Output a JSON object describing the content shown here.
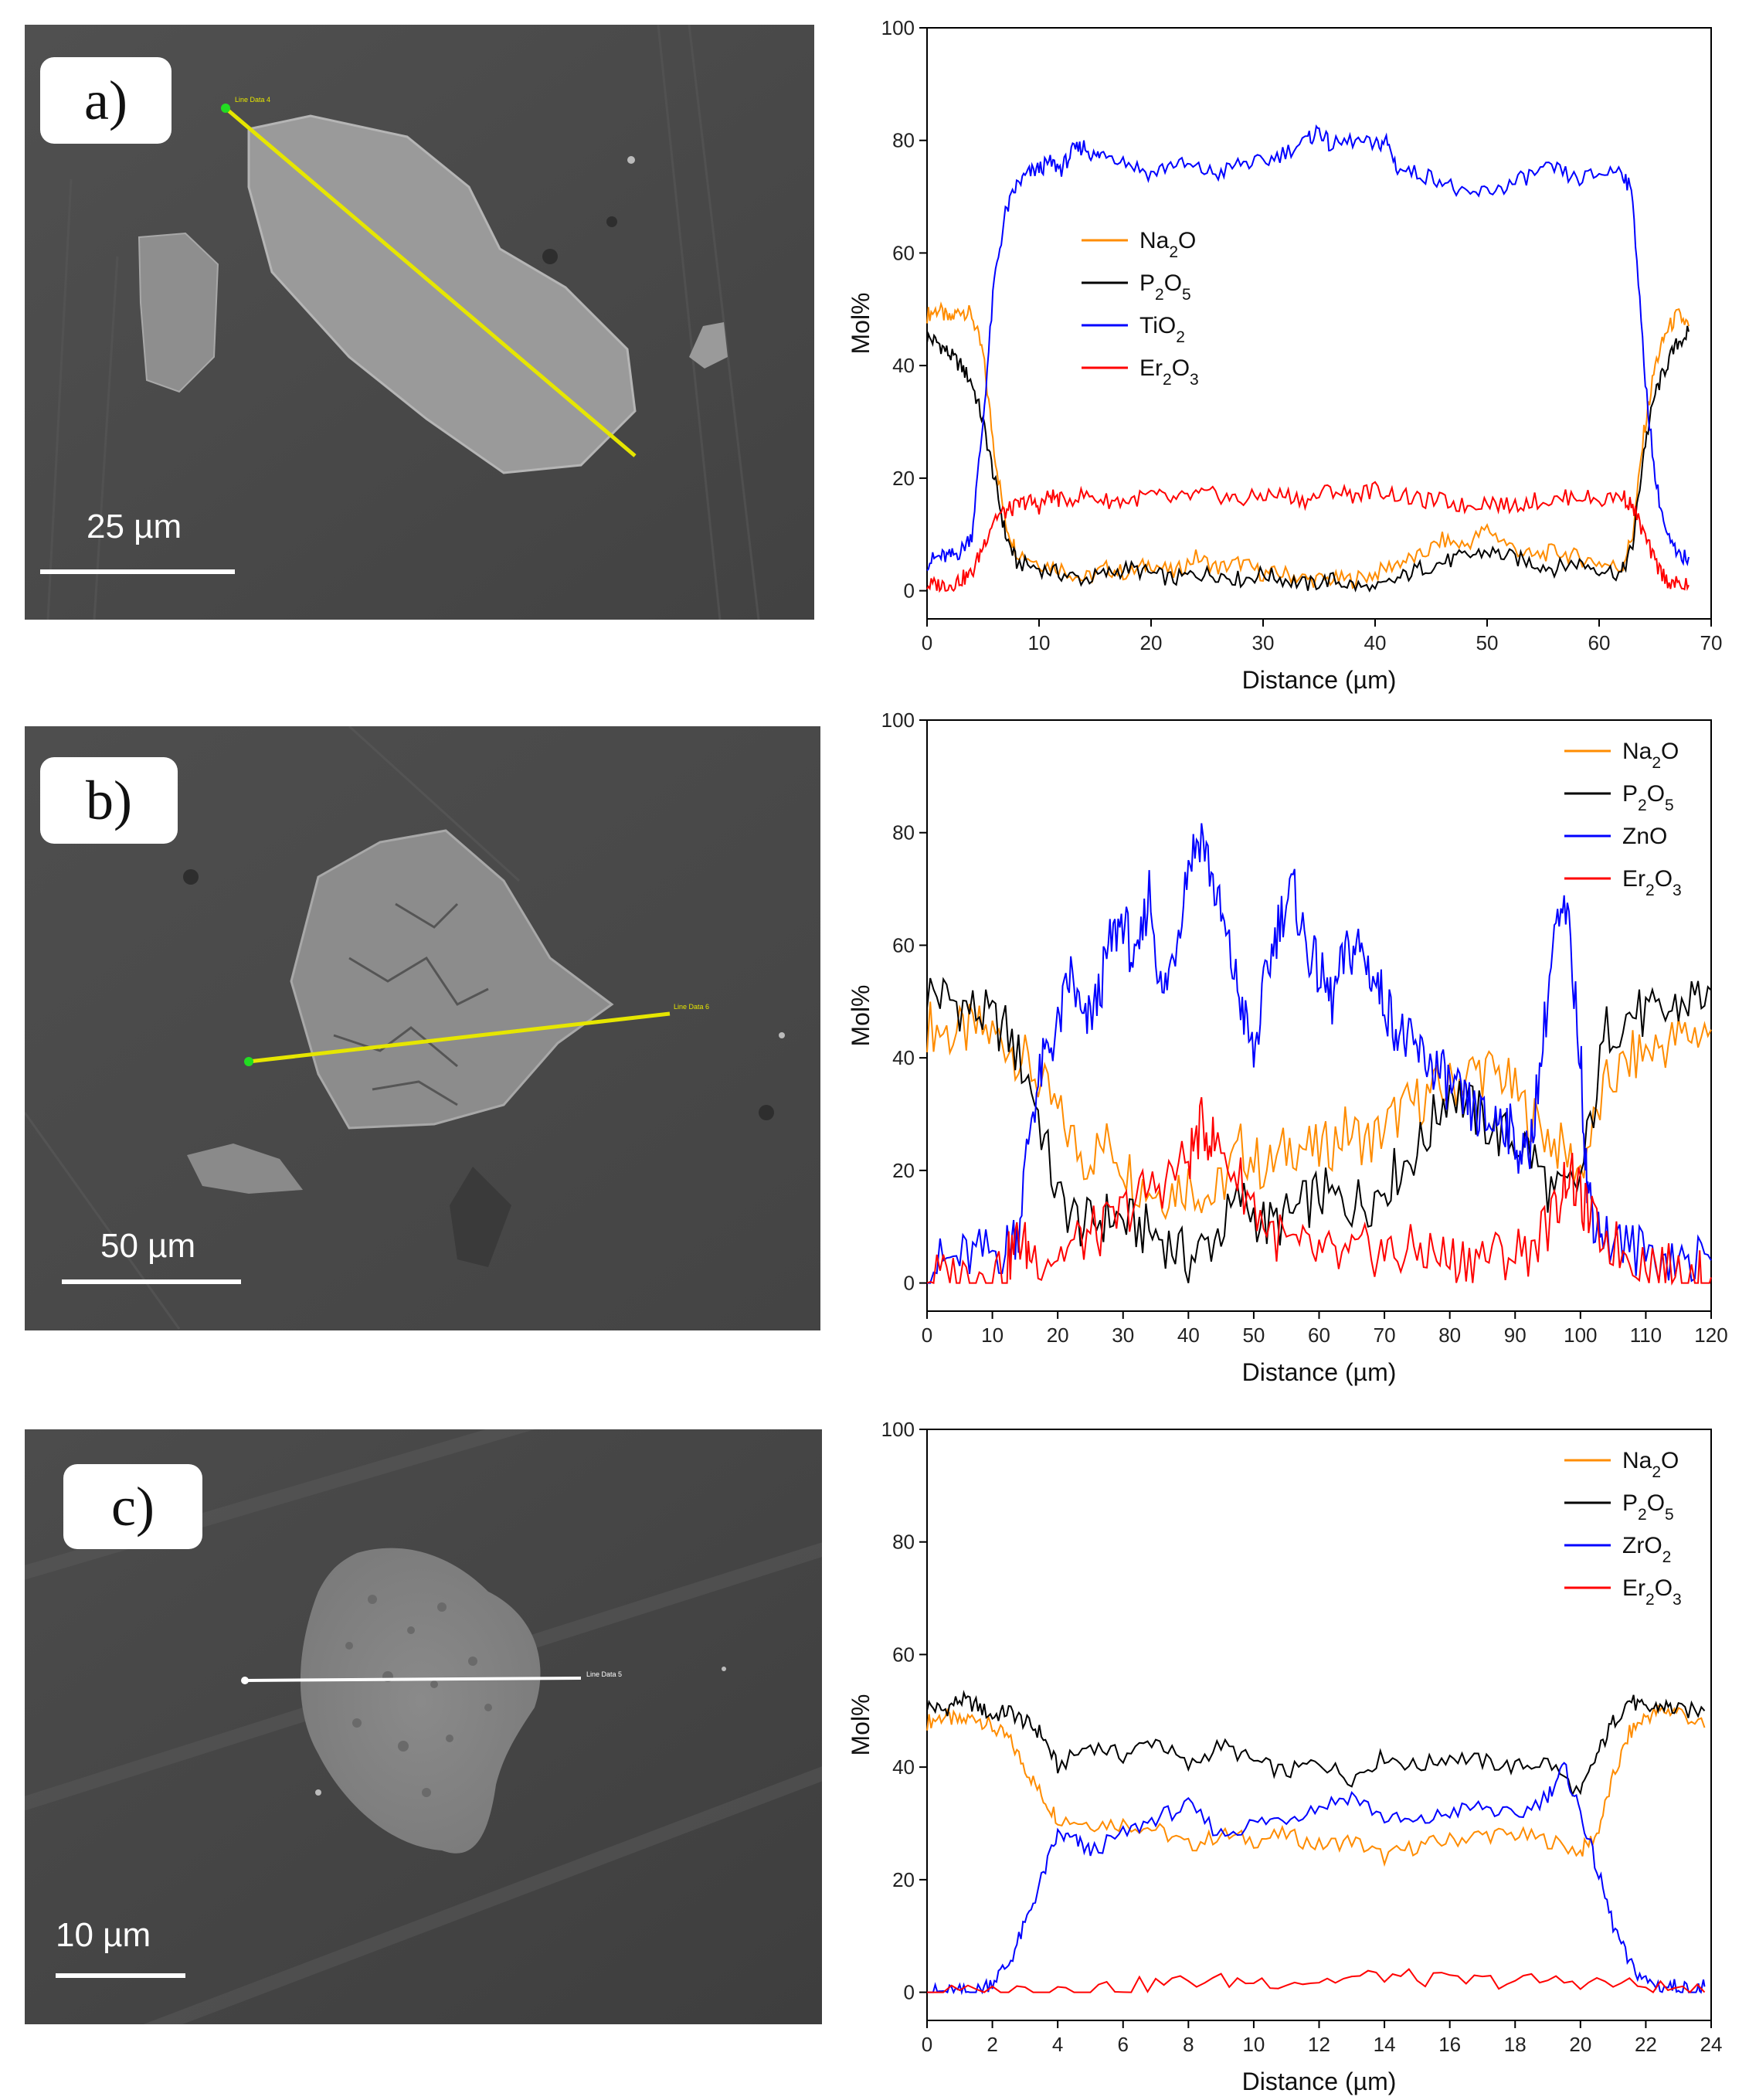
{
  "panels": [
    {
      "label": "a)",
      "scale_text": "25 µm",
      "line_tag": "Line Data 4",
      "line_color": "#e6e600",
      "chart_data": {
        "type": "line",
        "title": "",
        "xlabel": "Distance (µm)",
        "ylabel": "Mol%",
        "xlim": [
          0,
          70
        ],
        "ylim": [
          -5,
          100
        ],
        "xticks": [
          0,
          10,
          20,
          30,
          40,
          50,
          60,
          70
        ],
        "yticks": [
          0,
          20,
          40,
          60,
          80,
          100
        ],
        "legend_position": "center-left",
        "series": [
          {
            "name": "Na2O",
            "color": "#ff8c00",
            "x": [
              0,
              1,
              2,
              3,
              4,
              5,
              6,
              7,
              8,
              10,
              12,
              14,
              16,
              18,
              20,
              22,
              24,
              26,
              28,
              30,
              32,
              34,
              36,
              38,
              40,
              42,
              44,
              46,
              48,
              50,
              52,
              54,
              56,
              58,
              60,
              62,
              63,
              64,
              65,
              66,
              67,
              68
            ],
            "y": [
              49,
              50,
              48,
              50,
              49,
              42,
              25,
              12,
              7,
              5,
              4,
              2,
              4,
              3,
              5,
              3,
              6,
              4,
              5,
              3,
              3,
              2,
              2,
              2,
              3,
              5,
              6,
              9,
              8,
              11,
              8,
              6,
              7,
              6,
              5,
              4,
              10,
              28,
              40,
              46,
              49,
              47
            ]
          },
          {
            "name": "P2O5",
            "color": "#000000",
            "x": [
              0,
              1,
              2,
              3,
              4,
              5,
              6,
              7,
              8,
              10,
              12,
              14,
              16,
              18,
              20,
              22,
              24,
              26,
              28,
              30,
              32,
              34,
              36,
              38,
              40,
              42,
              44,
              46,
              48,
              50,
              52,
              54,
              56,
              58,
              60,
              62,
              63,
              64,
              65,
              66,
              67,
              68
            ],
            "y": [
              45,
              44,
              42,
              40,
              37,
              30,
              20,
              10,
              5,
              4,
              3,
              2,
              3,
              4,
              3,
              2,
              3,
              3,
              2,
              3,
              2,
              1,
              2,
              1,
              0,
              2,
              4,
              5,
              6,
              7,
              6,
              5,
              4,
              5,
              4,
              3,
              8,
              25,
              35,
              40,
              44,
              46
            ]
          },
          {
            "name": "TiO2",
            "color": "#0000ff",
            "x": [
              0,
              1,
              2,
              3,
              4,
              5,
              6,
              7,
              8,
              9,
              10,
              11,
              12,
              13,
              14,
              15,
              16,
              18,
              20,
              22,
              24,
              26,
              28,
              30,
              32,
              34,
              35,
              36,
              38,
              40,
              41,
              42,
              44,
              46,
              48,
              50,
              52,
              54,
              56,
              58,
              60,
              62,
              63,
              64,
              65,
              66,
              67,
              68
            ],
            "y": [
              5,
              6,
              6,
              7,
              10,
              30,
              55,
              67,
              72,
              74,
              75,
              76,
              75,
              78,
              79,
              77,
              78,
              76,
              74,
              76,
              75,
              74,
              76,
              76,
              78,
              80,
              82,
              79,
              80,
              79,
              80,
              75,
              74,
              73,
              70,
              71,
              72,
              74,
              75,
              73,
              74,
              75,
              70,
              40,
              20,
              10,
              6,
              6
            ]
          },
          {
            "name": "Er2O3",
            "color": "#ff0000",
            "x": [
              0,
              1,
              2,
              3,
              4,
              5,
              6,
              7,
              8,
              9,
              10,
              11,
              12,
              14,
              16,
              18,
              20,
              22,
              24,
              26,
              28,
              30,
              32,
              34,
              36,
              38,
              40,
              42,
              44,
              46,
              48,
              50,
              52,
              54,
              56,
              58,
              60,
              62,
              63,
              64,
              65,
              66,
              67,
              68
            ],
            "y": [
              1,
              1,
              1,
              2,
              3,
              8,
              13,
              14,
              15,
              16,
              15,
              17,
              16,
              17,
              16,
              16,
              17,
              16,
              17,
              17,
              16,
              17,
              17,
              16,
              18,
              17,
              18,
              17,
              16,
              16,
              15,
              16,
              15,
              16,
              16,
              17,
              16,
              17,
              15,
              10,
              5,
              2,
              1,
              1
            ]
          }
        ]
      }
    },
    {
      "label": "b)",
      "scale_text": "50 µm",
      "line_tag": "Line Data 6",
      "line_color": "#e6e600",
      "chart_data": {
        "type": "line",
        "title": "",
        "xlabel": "Distance (µm)",
        "ylabel": "Mol%",
        "xlim": [
          0,
          120
        ],
        "ylim": [
          -5,
          100
        ],
        "xticks": [
          0,
          10,
          20,
          30,
          40,
          50,
          60,
          70,
          80,
          90,
          100,
          110,
          120
        ],
        "yticks": [
          0,
          20,
          40,
          60,
          80,
          100
        ],
        "legend_position": "top-right",
        "series": [
          {
            "name": "Na2O",
            "color": "#ff8c00",
            "x": [
              0,
              4,
              8,
              12,
              16,
              20,
              24,
              28,
              32,
              36,
              40,
              44,
              48,
              52,
              56,
              60,
              64,
              68,
              72,
              76,
              80,
              84,
              88,
              92,
              96,
              100,
              104,
              108,
              112,
              116,
              120
            ],
            "y": [
              46,
              44,
              45,
              43,
              38,
              30,
              22,
              25,
              18,
              16,
              18,
              15,
              24,
              20,
              25,
              23,
              27,
              25,
              30,
              33,
              35,
              38,
              37,
              30,
              25,
              20,
              35,
              40,
              42,
              44,
              45
            ]
          },
          {
            "name": "P2O5",
            "color": "#000000",
            "x": [
              0,
              4,
              8,
              12,
              16,
              20,
              24,
              28,
              32,
              36,
              40,
              44,
              48,
              52,
              56,
              60,
              64,
              68,
              72,
              76,
              80,
              84,
              88,
              92,
              96,
              100,
              104,
              108,
              112,
              116,
              120
            ],
            "y": [
              52,
              50,
              48,
              45,
              35,
              15,
              10,
              12,
              10,
              8,
              4,
              8,
              15,
              10,
              12,
              16,
              14,
              15,
              20,
              25,
              35,
              30,
              26,
              24,
              15,
              18,
              45,
              48,
              47,
              50,
              52
            ]
          },
          {
            "name": "ZnO",
            "color": "#0000ff",
            "x": [
              0,
              4,
              8,
              12,
              14,
              16,
              18,
              20,
              22,
              24,
              26,
              28,
              30,
              32,
              34,
              36,
              38,
              40,
              42,
              44,
              46,
              48,
              50,
              52,
              54,
              56,
              58,
              60,
              62,
              64,
              66,
              68,
              70,
              72,
              74,
              76,
              78,
              80,
              82,
              84,
              86,
              88,
              90,
              92,
              94,
              96,
              98,
              100,
              101,
              102,
              104,
              108,
              112,
              116,
              120
            ],
            "y": [
              3,
              4,
              5,
              6,
              10,
              30,
              40,
              45,
              55,
              45,
              50,
              60,
              65,
              55,
              70,
              50,
              60,
              75,
              80,
              70,
              60,
              50,
              40,
              55,
              65,
              70,
              60,
              55,
              50,
              58,
              60,
              55,
              50,
              45,
              42,
              40,
              38,
              35,
              32,
              30,
              28,
              30,
              25,
              22,
              40,
              62,
              65,
              40,
              18,
              12,
              8,
              6,
              5,
              4,
              4
            ]
          },
          {
            "name": "Er2O3",
            "color": "#ff0000",
            "x": [
              0,
              4,
              8,
              12,
              14,
              16,
              20,
              24,
              28,
              32,
              36,
              40,
              42,
              44,
              48,
              52,
              56,
              60,
              64,
              68,
              72,
              76,
              80,
              84,
              88,
              92,
              96,
              98,
              100,
              102,
              106,
              110,
              114,
              118,
              120
            ],
            "y": [
              1,
              1,
              2,
              3,
              8,
              5,
              5,
              8,
              10,
              15,
              18,
              22,
              28,
              25,
              18,
              10,
              6,
              5,
              4,
              6,
              5,
              6,
              4,
              5,
              5,
              6,
              12,
              20,
              15,
              10,
              6,
              4,
              2,
              1,
              1
            ]
          }
        ]
      }
    },
    {
      "label": "c)",
      "scale_text": "10 µm",
      "line_tag": "Line Data 5",
      "line_color": "#ffffff",
      "chart_data": {
        "type": "line",
        "title": "",
        "xlabel": "Distance (µm)",
        "ylabel": "Mol%",
        "xlim": [
          0,
          24
        ],
        "ylim": [
          -5,
          100
        ],
        "xticks": [
          0,
          2,
          4,
          6,
          8,
          10,
          12,
          14,
          16,
          18,
          20,
          22,
          24
        ],
        "yticks": [
          0,
          20,
          40,
          60,
          80,
          100
        ],
        "legend_position": "top-right",
        "series": [
          {
            "name": "Na2O",
            "color": "#ff8c00",
            "x": [
              0,
              0.5,
              1,
              1.5,
              2,
              2.5,
              3,
              3.5,
              4,
              5,
              6,
              7,
              8,
              9,
              10,
              11,
              12,
              13,
              14,
              15,
              16,
              17,
              18,
              19,
              20,
              20.5,
              21,
              21.5,
              22,
              22.5,
              23,
              23.8
            ],
            "y": [
              48,
              49,
              48,
              49,
              47,
              45,
              40,
              35,
              31,
              30,
              30,
              29,
              26,
              28,
              27,
              28,
              26,
              27,
              24,
              26,
              27,
              28,
              28,
              27,
              25,
              28,
              38,
              46,
              49,
              50,
              50,
              47
            ]
          },
          {
            "name": "P2O5",
            "color": "#000000",
            "x": [
              0,
              0.5,
              1,
              1.5,
              2,
              2.5,
              3,
              3.5,
              4,
              5,
              6,
              7,
              8,
              9,
              10,
              11,
              12,
              13,
              14,
              15,
              16,
              17,
              18,
              19,
              20,
              20.5,
              21,
              21.5,
              22,
              22.5,
              23,
              23.8
            ],
            "y": [
              51,
              50,
              52,
              51,
              49,
              50,
              48,
              46,
              40,
              44,
              42,
              45,
              40,
              44,
              41,
              39,
              41,
              38,
              42,
              40,
              42,
              41,
              40,
              41,
              35,
              42,
              48,
              52,
              50,
              51,
              50,
              50
            ]
          },
          {
            "name": "ZrO2",
            "color": "#0000ff",
            "x": [
              0,
              0.5,
              1,
              1.5,
              2,
              2.5,
              3,
              3.5,
              4,
              4.5,
              5,
              6,
              7,
              8,
              9,
              10,
              11,
              12,
              13,
              14,
              15,
              16,
              17,
              18,
              19,
              19.5,
              20,
              20.5,
              21,
              21.5,
              22,
              22.5,
              23,
              23.5,
              23.8
            ],
            "y": [
              0,
              0,
              0,
              0,
              2,
              5,
              12,
              20,
              28,
              27,
              25,
              28,
              31,
              33,
              28,
              30,
              31,
              33,
              35,
              31,
              30,
              32,
              33,
              31,
              35,
              40,
              32,
              22,
              12,
              5,
              2,
              1,
              1,
              0,
              1
            ]
          },
          {
            "name": "Er2O3",
            "color": "#ff0000",
            "x": [
              0,
              2,
              4,
              6,
              8,
              10,
              12,
              14,
              16,
              18,
              20,
              22,
              23.8
            ],
            "y": [
              0,
              0,
              1,
              1,
              2,
              2,
              2,
              3,
              2,
              2,
              2,
              1,
              0
            ]
          }
        ]
      }
    }
  ]
}
